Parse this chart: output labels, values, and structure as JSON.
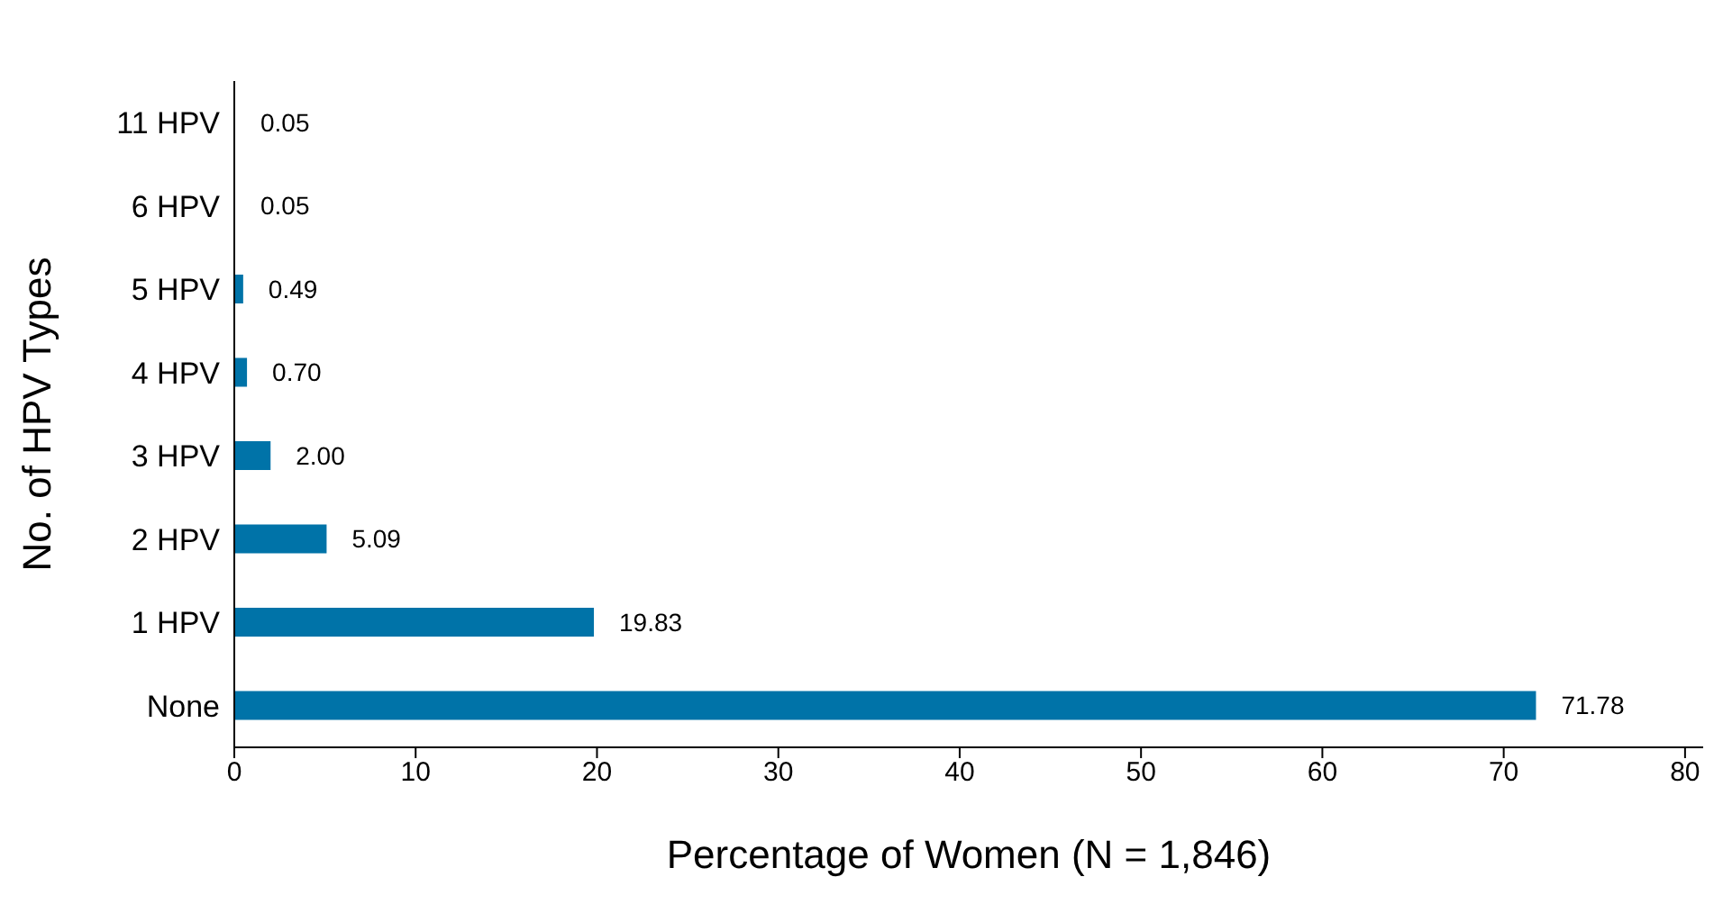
{
  "chart_data": {
    "type": "bar",
    "orientation": "horizontal",
    "xlabel": "Percentage of Women (N = 1,846)",
    "ylabel": "No. of HPV Types",
    "categories": [
      "11 HPV",
      "6 HPV",
      "5 HPV",
      "4 HPV",
      "3 HPV",
      "2 HPV",
      "1 HPV",
      "None"
    ],
    "values": [
      0.05,
      0.05,
      0.49,
      0.7,
      2.0,
      5.09,
      19.83,
      71.78
    ],
    "value_labels": [
      "0.05",
      "0.05",
      "0.49",
      "0.70",
      "2.00",
      "5.09",
      "19.83",
      "71.78"
    ],
    "color": "#0073a8",
    "xlim": [
      0,
      81
    ],
    "xticks": [
      0,
      10,
      20,
      30,
      40,
      50,
      60,
      70,
      80
    ]
  }
}
